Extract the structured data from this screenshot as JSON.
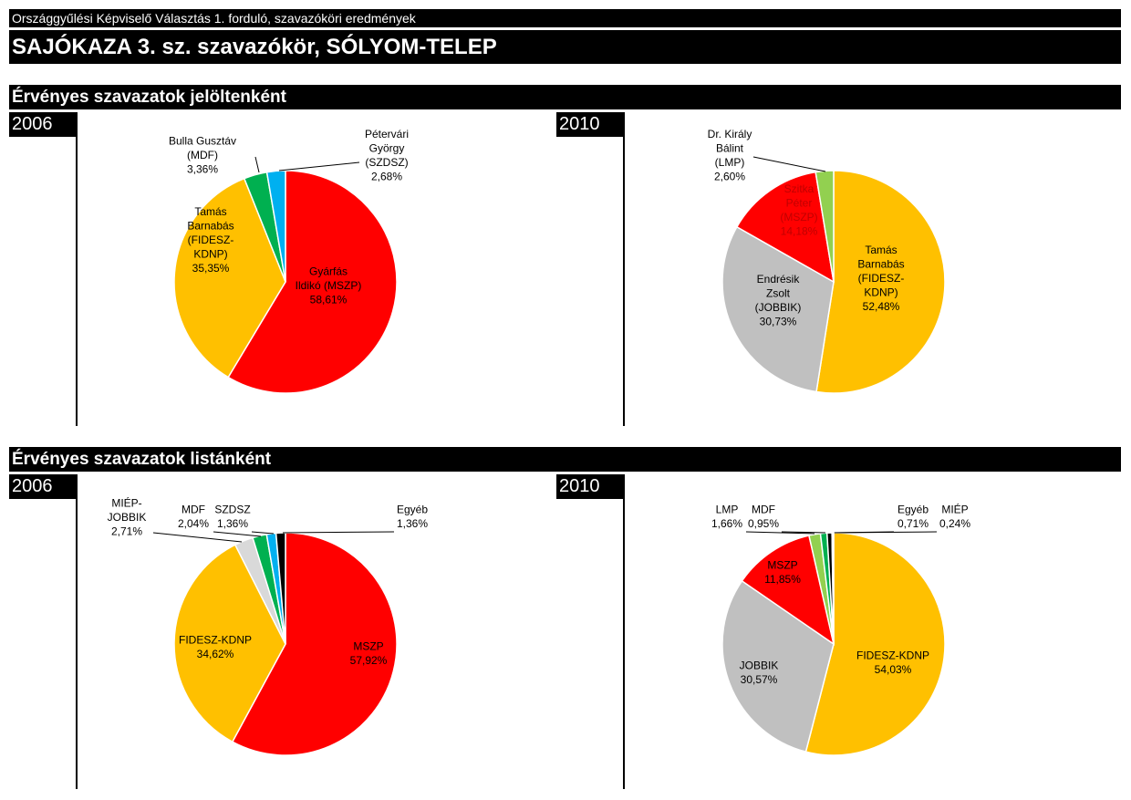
{
  "header": {
    "supertitle": "Országgyűlési Képviselő Választás 1. forduló, szavazóköri eredmények",
    "title": "SAJÓKAZA 3. sz. szavazókör, SÓLYOM-TELEP"
  },
  "sections": {
    "candidates": "Érvényes szavazatok jelöltenként",
    "lists": "Érvényes szavazatok listánként"
  },
  "years": {
    "y2006": "2006",
    "y2010": "2010"
  },
  "chart_data": [
    {
      "type": "pie",
      "group": "Érvényes szavazatok jelöltenként",
      "year": "2006",
      "slices": [
        {
          "label": [
            "Gyárfás",
            "Ildikó (MSZP)",
            "58,61%"
          ],
          "value": 58.61,
          "color": "#FF0000"
        },
        {
          "label": [
            "Tamás",
            "Barnabás",
            "(FIDESZ-",
            "KDNP)",
            "35,35%"
          ],
          "value": 35.35,
          "color": "#FFC000"
        },
        {
          "label": [
            "Bulla Gusztáv",
            "(MDF)",
            "3,36%"
          ],
          "value": 3.36,
          "color": "#00B050"
        },
        {
          "label": [
            "Pétervári",
            "György",
            "(SZDSZ)",
            "2,68%"
          ],
          "value": 2.68,
          "color": "#00B0F0"
        }
      ]
    },
    {
      "type": "pie",
      "group": "Érvényes szavazatok jelöltenként",
      "year": "2010",
      "slices": [
        {
          "label": [
            "Tamás",
            "Barnabás",
            "(FIDESZ-",
            "KDNP)",
            "52,48%"
          ],
          "value": 52.48,
          "color": "#FFC000"
        },
        {
          "label": [
            "Endrésik",
            "Zsolt",
            "(JOBBIK)",
            "30,73%"
          ],
          "value": 30.73,
          "color": "#C0C0C0"
        },
        {
          "label": [
            "Szitka",
            "Péter",
            "(MSZP)",
            "14,18%"
          ],
          "value": 14.18,
          "color": "#FF0000"
        },
        {
          "label": [
            "Dr. Király",
            "Bálint",
            "(LMP)",
            "2,60%"
          ],
          "value": 2.6,
          "color": "#92D050"
        }
      ]
    },
    {
      "type": "pie",
      "group": "Érvényes szavazatok listánként",
      "year": "2006",
      "slices": [
        {
          "label": [
            "MSZP",
            "57,92%"
          ],
          "value": 57.92,
          "color": "#FF0000"
        },
        {
          "label": [
            "FIDESZ-KDNP",
            "34,62%"
          ],
          "value": 34.62,
          "color": "#FFC000"
        },
        {
          "label": [
            "MIÉP-",
            "JOBBIK",
            "2,71%"
          ],
          "value": 2.71,
          "color": "#D9D9D9"
        },
        {
          "label": [
            "MDF",
            "2,04%"
          ],
          "value": 2.04,
          "color": "#00B050"
        },
        {
          "label": [
            "SZDSZ",
            "1,36%"
          ],
          "value": 1.36,
          "color": "#00B0F0"
        },
        {
          "label": [
            "Egyéb",
            "1,36%"
          ],
          "value": 1.36,
          "color": "#000000"
        }
      ]
    },
    {
      "type": "pie",
      "group": "Érvényes szavazatok listánként",
      "year": "2010",
      "slices": [
        {
          "label": [
            "FIDESZ-KDNP",
            "54,03%"
          ],
          "value": 54.03,
          "color": "#FFC000"
        },
        {
          "label": [
            "JOBBIK",
            "30,57%"
          ],
          "value": 30.57,
          "color": "#C0C0C0"
        },
        {
          "label": [
            "MSZP",
            "11,85%"
          ],
          "value": 11.85,
          "color": "#FF0000"
        },
        {
          "label": [
            "LMP",
            "1,66%"
          ],
          "value": 1.66,
          "color": "#92D050"
        },
        {
          "label": [
            "MDF",
            "0,95%"
          ],
          "value": 0.95,
          "color": "#00B050"
        },
        {
          "label": [
            "Egyéb",
            "0,71%"
          ],
          "value": 0.71,
          "color": "#000000"
        },
        {
          "label": [
            "MIÉP",
            "0,24%"
          ],
          "value": 0.24,
          "color": "#FFFFFF"
        }
      ]
    }
  ]
}
